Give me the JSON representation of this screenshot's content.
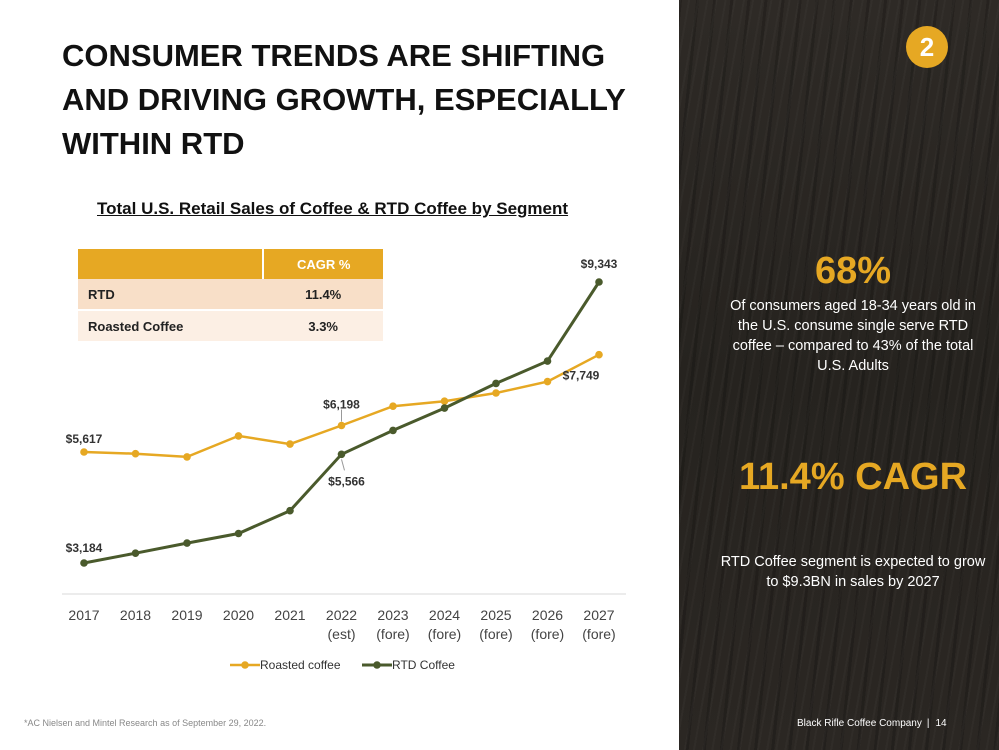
{
  "slide": {
    "title": "CONSUMER TRENDS ARE SHIFTING AND DRIVING GROWTH, ESPECIALLY WITHIN RTD",
    "section_number": "2",
    "footnote": "*AC Nielsen and Mintel Research as of September 29, 2022.",
    "company": "Black Rifle Coffee Company",
    "separator": "|",
    "page_number": "14"
  },
  "cagr_table": {
    "header": "CAGR %",
    "rows": [
      {
        "label": "RTD",
        "value": "11.4%"
      },
      {
        "label": "Roasted Coffee",
        "value": "3.3%"
      }
    ]
  },
  "stats": [
    {
      "value": "68%",
      "text": "Of consumers aged 18-34 years old in the U.S. consume single serve RTD coffee – compared to 43% of the total U.S. Adults"
    },
    {
      "value": "11.4% CAGR",
      "text": "RTD Coffee segment is expected to grow to $9.3BN in sales by 2027"
    }
  ],
  "colors": {
    "accent": "#e6a823",
    "rtd": "#4a5a2c",
    "panel": "#2b2723"
  },
  "chart_data": {
    "type": "line",
    "title": "Total U.S. Retail Sales of Coffee & RTD Coffee by Segment",
    "categories": [
      [
        "2017"
      ],
      [
        "2018"
      ],
      [
        "2019"
      ],
      [
        "2020"
      ],
      [
        "2021"
      ],
      [
        "2022",
        "(est)"
      ],
      [
        "2023",
        "(fore)"
      ],
      [
        "2024",
        "(fore)"
      ],
      [
        "2025",
        "(fore)"
      ],
      [
        "2026",
        "(fore)"
      ],
      [
        "2027",
        "(fore)"
      ]
    ],
    "series": [
      {
        "name": "Roasted coffee",
        "color": "#e6a823",
        "values": [
          5617,
          5580,
          5510,
          5970,
          5790,
          6198,
          6620,
          6730,
          6910,
          7160,
          7749
        ]
      },
      {
        "name": "RTD Coffee",
        "color": "#4a5a2c",
        "values": [
          3184,
          3400,
          3620,
          3830,
          4330,
          5566,
          6090,
          6580,
          7120,
          7610,
          9343
        ]
      }
    ],
    "data_labels": [
      {
        "series": 0,
        "index": 0,
        "text": "$5,617"
      },
      {
        "series": 0,
        "index": 5,
        "text": "$6,198"
      },
      {
        "series": 0,
        "index": 10,
        "text": "$7,749"
      },
      {
        "series": 1,
        "index": 0,
        "text": "$3,184"
      },
      {
        "series": 1,
        "index": 5,
        "text": "$5,566"
      },
      {
        "series": 1,
        "index": 10,
        "text": "$9,343"
      }
    ],
    "legend_position": "bottom",
    "grid": false
  }
}
